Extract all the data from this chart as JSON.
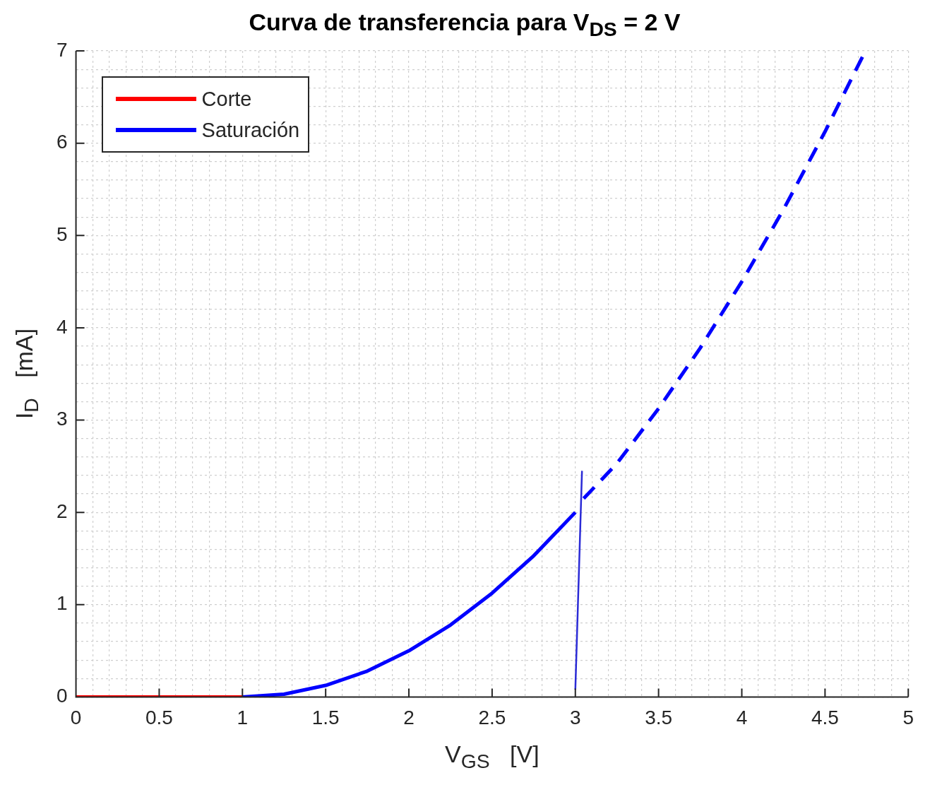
{
  "chart_data": {
    "type": "line",
    "title": "Curva de transferencia para V$_{DS}$ = 2 V",
    "xlabel": "V$_{GS}$   [V]",
    "ylabel": "I$_{D}$   [mA]",
    "xlim": [
      0,
      5
    ],
    "ylim": [
      0,
      7
    ],
    "xticks": [
      0,
      {
        "value": 0.1,
        "label": null
      },
      {
        "value": 0.2,
        "label": null
      },
      {
        "value": 0.3,
        "label": null
      },
      {
        "value": 0.4,
        "label": null
      },
      0.5,
      {
        "value": 0.6,
        "label": null
      },
      {
        "value": 0.7,
        "label": null
      },
      {
        "value": 0.8,
        "label": null
      },
      {
        "value": 0.9,
        "label": null
      },
      1,
      {
        "value": 1.1,
        "label": null
      },
      {
        "value": 1.2,
        "label": null
      },
      {
        "value": 1.3,
        "label": null
      },
      {
        "value": 1.4,
        "label": null
      },
      1.5,
      {
        "value": 1.6,
        "label": null
      },
      {
        "value": 1.7,
        "label": null
      },
      {
        "value": 1.8,
        "label": null
      },
      {
        "value": 1.9,
        "label": null
      },
      2,
      {
        "value": 2.1,
        "label": null
      },
      {
        "value": 2.2,
        "label": null
      },
      {
        "value": 2.3,
        "label": null
      },
      {
        "value": 2.4,
        "label": null
      },
      2.5,
      {
        "value": 2.6,
        "label": null
      },
      {
        "value": 2.7,
        "label": null
      },
      {
        "value": 2.8,
        "label": null
      },
      {
        "value": 2.9,
        "label": null
      },
      3,
      {
        "value": 3.1,
        "label": null
      },
      {
        "value": 3.2,
        "label": null
      },
      {
        "value": 3.3,
        "label": null
      },
      {
        "value": 3.4,
        "label": null
      },
      3.5,
      {
        "value": 3.6,
        "label": null
      },
      {
        "value": 3.7,
        "label": null
      },
      {
        "value": 3.8,
        "label": null
      },
      {
        "value": 3.9,
        "label": null
      },
      4,
      {
        "value": 4.1,
        "label": null
      },
      {
        "value": 4.2,
        "label": null
      },
      {
        "value": 4.3,
        "label": null
      },
      {
        "value": 4.4,
        "label": null
      },
      4.5,
      {
        "value": 4.6,
        "label": null
      },
      {
        "value": 4.7,
        "label": null
      },
      {
        "value": 4.8,
        "label": null
      },
      {
        "value": 4.9,
        "label": null
      },
      5
    ],
    "yticks": [
      0,
      {
        "value": 0.2,
        "label": null
      },
      {
        "value": 0.4,
        "label": null
      },
      {
        "value": 0.6,
        "label": null
      },
      {
        "value": 0.8,
        "label": null
      },
      1,
      {
        "value": 1.2,
        "label": null
      },
      {
        "value": 1.4,
        "label": null
      },
      {
        "value": 1.6,
        "label": null
      },
      {
        "value": 1.8,
        "label": null
      },
      2,
      {
        "value": 2.2,
        "label": null
      },
      {
        "value": 2.4,
        "label": null
      },
      {
        "value": 2.6,
        "label": null
      },
      {
        "value": 2.8,
        "label": null
      },
      3,
      {
        "value": 3.2,
        "label": null
      },
      {
        "value": 3.4,
        "label": null
      },
      {
        "value": 3.6,
        "label": null
      },
      {
        "value": 3.8,
        "label": null
      },
      4,
      {
        "value": 4.2,
        "label": null
      },
      {
        "value": 4.4,
        "label": null
      },
      {
        "value": 4.6,
        "label": null
      },
      {
        "value": 4.8,
        "label": null
      },
      5,
      {
        "value": 5.2,
        "label": null
      },
      {
        "value": 5.4,
        "label": null
      },
      {
        "value": 5.6,
        "label": null
      },
      {
        "value": 5.8,
        "label": null
      },
      6,
      {
        "value": 6.2,
        "label": null
      },
      {
        "value": 6.4,
        "label": null
      },
      {
        "value": 6.6,
        "label": null
      },
      {
        "value": 6.8,
        "label": null
      },
      7
    ],
    "grid": true,
    "legend": "top left",
    "marker": "none",
    "series": [
      {
        "name": "Corte",
        "color": "#ff0000",
        "x": [
          0,
          1
        ],
        "values": [
          0,
          0
        ],
        "line_style": "solid"
      },
      {
        "name": "Saturación",
        "color": "#0000ff",
        "x": [
          1,
          1.25,
          1.5,
          1.75,
          2,
          2.25,
          2.5,
          2.75,
          3
        ],
        "values": [
          0,
          0.03,
          0.125,
          0.28,
          0.5,
          0.78,
          1.125,
          1.53,
          2.0
        ],
        "line_style": "solid"
      },
      {
        "color": "#0000ff",
        "x": [
          3.05,
          3.25,
          3.5,
          3.75,
          4,
          4.25,
          4.5,
          4.74
        ],
        "values": [
          2.15,
          2.53,
          3.125,
          3.78,
          4.5,
          5.28,
          6.125,
          6.99
        ],
        "line_style": "dashed"
      },
      {
        "color": "#2b2bd6",
        "x": [
          3.0,
          3.04
        ],
        "values": [
          0.08,
          2.45
        ],
        "line_style": "solid"
      }
    ]
  }
}
